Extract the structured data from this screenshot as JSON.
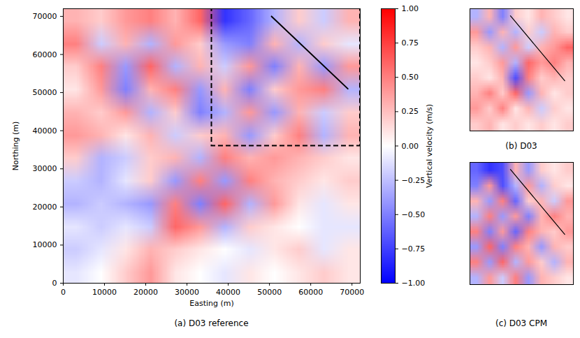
{
  "chart_data": [
    {
      "type": "heatmap",
      "title": "(a) D03 reference",
      "xlabel": "Easting (m)",
      "ylabel": "Northing (m)",
      "xlim": [
        0,
        72000
      ],
      "ylim": [
        0,
        72000
      ],
      "xticks": [
        0,
        10000,
        20000,
        30000,
        40000,
        50000,
        60000,
        70000
      ],
      "yticks": [
        0,
        10000,
        20000,
        30000,
        40000,
        50000,
        60000,
        70000
      ],
      "cells": {
        "width": 12,
        "height": 12,
        "values": [
          [
            0.3,
            0.2,
            0.4,
            0.5,
            0.3,
            0.6,
            -0.8,
            -0.6,
            -0.3,
            0.2,
            -0.2,
            0.3
          ],
          [
            0.5,
            -0.2,
            0.3,
            -0.3,
            0.4,
            0.2,
            -0.4,
            -0.5,
            0.3,
            -0.3,
            0.2,
            -0.1
          ],
          [
            0.2,
            0.5,
            -0.4,
            0.6,
            -0.3,
            0.3,
            -0.2,
            0.4,
            -0.5,
            0.3,
            -0.4,
            0.4
          ],
          [
            0.1,
            0.4,
            -0.5,
            0.3,
            0.5,
            -0.4,
            0.3,
            -0.5,
            0.2,
            0.4,
            0.5,
            -0.3
          ],
          [
            0.3,
            0.2,
            0.4,
            -0.3,
            0.2,
            -0.5,
            -0.3,
            0.4,
            -0.4,
            0.3,
            -0.2,
            0.2
          ],
          [
            0.4,
            0.3,
            0.1,
            0.3,
            -0.2,
            0.2,
            0.3,
            -0.4,
            0.2,
            0.5,
            -0.3,
            0.3
          ],
          [
            0.2,
            -0.3,
            -0.2,
            0.2,
            0.3,
            -0.3,
            0.5,
            0.3,
            0.4,
            0.3,
            0.2,
            0.1
          ],
          [
            -0.2,
            -0.3,
            -0.1,
            0.2,
            -0.4,
            0.5,
            -0.4,
            0.5,
            0.3,
            0.2,
            0.1,
            0.2
          ],
          [
            -0.3,
            -0.2,
            -0.3,
            -0.4,
            0.5,
            -0.5,
            0.6,
            -0.3,
            0.4,
            0.1,
            -0.1,
            0.1
          ],
          [
            -0.1,
            -0.2,
            -0.1,
            -0.2,
            0.6,
            0.4,
            -0.3,
            0.2,
            0.1,
            0.0,
            -0.1,
            -0.1
          ],
          [
            -0.2,
            -0.1,
            0.1,
            0.3,
            0.2,
            0.1,
            0.0,
            -0.1,
            0.1,
            0.2,
            -0.1,
            0.1
          ],
          [
            -0.1,
            0.0,
            0.2,
            0.4,
            0.1,
            0.0,
            -0.1,
            0.1,
            0.0,
            0.1,
            0.2,
            0.1
          ]
        ]
      },
      "box": {
        "x": [
          36000,
          72000
        ],
        "y": [
          36000,
          72000
        ]
      },
      "section": [
        [
          50500,
          70000
        ],
        [
          69000,
          51000
        ]
      ],
      "colorbar": {
        "label": "Vertical velocity (m/s)",
        "range": [
          -1,
          1
        ],
        "colors": [
          "#0000ff",
          "#ffffff",
          "#ff0000"
        ],
        "ticks": [
          {
            "value": -1,
            "label": "−1.00"
          },
          {
            "value": -0.75,
            "label": "−0.75"
          },
          {
            "value": -0.5,
            "label": "−0.50"
          },
          {
            "value": -0.25,
            "label": "−0.25"
          },
          {
            "value": 0,
            "label": "0.00"
          },
          {
            "value": 0.25,
            "label": "0.25"
          },
          {
            "value": 0.5,
            "label": "0.50"
          },
          {
            "value": 0.75,
            "label": "0.75"
          },
          {
            "value": 1,
            "label": "1.00"
          }
        ]
      }
    },
    {
      "type": "heatmap",
      "title": "(b) D03",
      "tick_labels": false,
      "xlim": [
        36000,
        72000
      ],
      "ylim": [
        36000,
        72000
      ],
      "cells": {
        "width": 8,
        "height": 8,
        "values": [
          [
            -0.3,
            0.3,
            -0.5,
            0.2,
            0.1,
            0.3,
            0.2,
            0.1
          ],
          [
            0.4,
            -0.4,
            0.3,
            -0.3,
            0.2,
            -0.2,
            0.3,
            0.2
          ],
          [
            0.2,
            0.3,
            -0.3,
            0.4,
            -0.2,
            0.3,
            0.4,
            0.6
          ],
          [
            0.1,
            0.2,
            0.4,
            -0.3,
            0.6,
            0.4,
            0.5,
            0.3
          ],
          [
            0.2,
            0.1,
            0.3,
            -0.7,
            0.5,
            0.2,
            0.3,
            0.2
          ],
          [
            0.3,
            0.5,
            0.2,
            0.6,
            -0.4,
            0.3,
            0.1,
            0.2
          ],
          [
            0.4,
            0.2,
            0.5,
            0.1,
            0.3,
            -0.2,
            0.2,
            0.1
          ],
          [
            0.2,
            0.3,
            0.1,
            0.2,
            0.1,
            0.2,
            0.1,
            0.2
          ]
        ]
      },
      "section": [
        [
          50100,
          69900
        ],
        [
          69000,
          50800
        ]
      ]
    },
    {
      "type": "heatmap",
      "title": "(c) D03 CPM",
      "tick_labels": false,
      "xlim": [
        36000,
        72000
      ],
      "ylim": [
        36000,
        72000
      ],
      "cells": {
        "width": 8,
        "height": 8,
        "values": [
          [
            -0.6,
            -0.8,
            -0.7,
            0.3,
            -0.4,
            0.2,
            0.1,
            0.2
          ],
          [
            -0.5,
            0.4,
            -0.7,
            -0.3,
            0.4,
            -0.3,
            0.2,
            0.1
          ],
          [
            0.3,
            -0.4,
            0.5,
            -0.6,
            0.2,
            0.3,
            -0.2,
            0.4
          ],
          [
            -0.3,
            0.5,
            -0.4,
            0.4,
            -0.5,
            0.3,
            0.5,
            0.3
          ],
          [
            0.5,
            -0.5,
            0.4,
            -0.6,
            0.5,
            0.3,
            0.2,
            0.4
          ],
          [
            -0.4,
            0.6,
            -0.5,
            0.5,
            0.3,
            -0.4,
            0.3,
            0.2
          ],
          [
            0.5,
            -0.4,
            0.6,
            -0.3,
            0.4,
            0.2,
            -0.3,
            0.3
          ],
          [
            -0.3,
            0.4,
            -0.2,
            0.5,
            -0.4,
            0.3,
            0.2,
            0.1
          ]
        ]
      },
      "section": [
        [
          50100,
          69900
        ],
        [
          69000,
          50800
        ]
      ]
    }
  ]
}
